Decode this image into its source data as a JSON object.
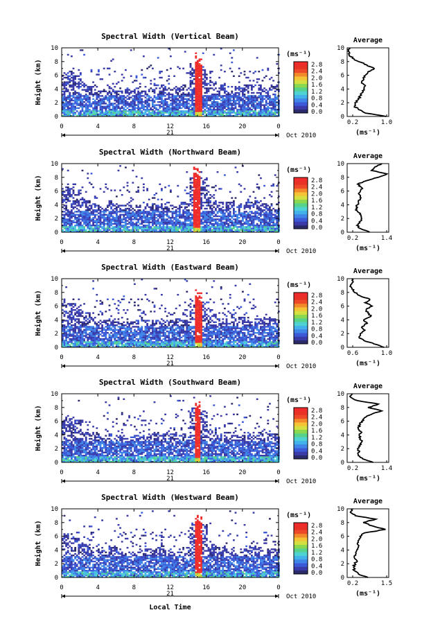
{
  "colors": {
    "scale": [
      "#2b2b6b",
      "#3a3aa8",
      "#3c5ad8",
      "#3f86e8",
      "#43b1ea",
      "#4fd2d2",
      "#57d28a",
      "#8ad850",
      "#d4df42",
      "#f5c436",
      "#f28a2c",
      "#ee4a2a",
      "#e83226",
      "#ef2b2b"
    ],
    "spike": "#ef2b2b"
  },
  "labels": {
    "date_label": "Oct 2010",
    "day_label": "21",
    "xlabel_bottom": "Local Time",
    "ylabel": "Height (km)",
    "colorbar_unit": "(ms⁻¹)",
    "avg_title": "Average",
    "avg_xlabel": "(ms⁻¹)"
  },
  "chart_data": [
    {
      "type": "heatmap",
      "title": "Spectral Width (Vertical Beam)",
      "xlabel": "",
      "ylabel": "Height (km)",
      "xlim": [
        0,
        24
      ],
      "ylim": [
        0,
        10
      ],
      "xticks": [
        "0",
        "4",
        "8",
        "12",
        "16",
        "20",
        "0"
      ],
      "yticks": [
        "0",
        "2",
        "4",
        "6",
        "8",
        "10"
      ],
      "colorbar": {
        "label": "(ms⁻¹)",
        "ticks": [
          "0.0",
          "0.4",
          "0.8",
          "1.2",
          "1.6",
          "2.0",
          "2.4",
          "2.8"
        ],
        "range": [
          0,
          2.8
        ]
      },
      "echo_top_km": [
        6.5,
        6.2,
        4.8,
        4.6,
        4.2,
        4.5,
        4.1,
        4.0,
        4.3,
        4.4,
        4.8,
        4.4,
        4.4,
        4.5,
        8.0,
        7.6,
        5.5,
        4.8,
        3.6,
        4.5,
        4.8,
        4.7,
        4.5,
        4.5
      ],
      "high_width_hours": [
        14.6,
        15.4
      ],
      "average_profile": {
        "title": "Average",
        "xlabel": "(ms⁻¹)",
        "xticks": [
          "0.2",
          "1.0"
        ],
        "xlim": [
          0.2,
          1.0
        ],
        "heights_km": [
          0,
          0.5,
          1,
          1.5,
          2,
          2.5,
          3,
          3.5,
          4,
          4.5,
          5,
          5.5,
          6,
          6.5,
          7,
          7.5,
          8,
          8.5,
          9,
          9.5,
          10
        ],
        "values": [
          0.95,
          0.55,
          0.42,
          0.34,
          0.35,
          0.42,
          0.45,
          0.5,
          0.52,
          0.55,
          0.48,
          0.52,
          0.55,
          0.6,
          0.72,
          0.58,
          0.42,
          0.3,
          0.24,
          0.22,
          0.25
        ]
      }
    },
    {
      "type": "heatmap",
      "title": "Spectral Width (Northward Beam)",
      "xlabel": "",
      "ylabel": "Height (km)",
      "xlim": [
        0,
        24
      ],
      "ylim": [
        0,
        10
      ],
      "xticks": [
        "0",
        "4",
        "8",
        "12",
        "16",
        "20",
        "0"
      ],
      "yticks": [
        "0",
        "2",
        "4",
        "6",
        "8",
        "10"
      ],
      "colorbar": {
        "label": "(ms⁻¹)",
        "ticks": [
          "0.0",
          "0.4",
          "0.8",
          "1.2",
          "1.6",
          "2.0",
          "2.4",
          "2.8"
        ],
        "range": [
          0,
          2.8
        ]
      },
      "echo_top_km": [
        6.8,
        6.3,
        5.0,
        4.4,
        4.2,
        4.7,
        4.1,
        4.0,
        4.2,
        4.5,
        4.4,
        4.5,
        4.2,
        4.5,
        8.5,
        8.0,
        5.2,
        4.5,
        4.6,
        4.4,
        4.6,
        4.7,
        4.4,
        4.5
      ],
      "high_width_hours": [
        14.5,
        15.3
      ],
      "average_profile": {
        "title": "Average",
        "xlabel": "(ms⁻¹)",
        "xticks": [
          "0.2",
          "1.4"
        ],
        "xlim": [
          0.2,
          1.4
        ],
        "heights_km": [
          0,
          0.5,
          1,
          1.5,
          2,
          2.5,
          3,
          3.5,
          4,
          4.5,
          5,
          5.5,
          6,
          6.5,
          7,
          7.5,
          8,
          8.5,
          9,
          9.5,
          10
        ],
        "values": [
          0.85,
          0.6,
          0.48,
          0.55,
          0.62,
          0.6,
          0.5,
          0.46,
          0.5,
          0.52,
          0.6,
          0.55,
          0.58,
          0.62,
          0.5,
          0.75,
          1.1,
          1.35,
          0.9,
          1.0,
          1.2
        ]
      }
    },
    {
      "type": "heatmap",
      "title": "Spectral Width (Eastward Beam)",
      "xlabel": "",
      "ylabel": "Height (km)",
      "xlim": [
        0,
        24
      ],
      "ylim": [
        0,
        10
      ],
      "xticks": [
        "0",
        "4",
        "8",
        "12",
        "16",
        "20",
        "0"
      ],
      "yticks": [
        "0",
        "2",
        "4",
        "6",
        "8",
        "10"
      ],
      "colorbar": {
        "label": "(ms⁻¹)",
        "ticks": [
          "0.0",
          "0.4",
          "0.8",
          "1.2",
          "1.6",
          "2.0",
          "2.4",
          "2.8"
        ],
        "range": [
          0,
          2.8
        ]
      },
      "echo_top_km": [
        7.0,
        6.5,
        5.2,
        4.5,
        4.0,
        4.2,
        3.8,
        3.8,
        4.0,
        4.0,
        4.3,
        4.0,
        4.4,
        4.2,
        7.2,
        6.8,
        5.0,
        4.5,
        4.8,
        4.5,
        4.6,
        4.4,
        4.5,
        4.3
      ],
      "high_width_hours": [
        14.7,
        15.5
      ],
      "average_profile": {
        "title": "Average",
        "xlabel": "(ms⁻¹)",
        "xticks": [
          "0.6",
          "1.0"
        ],
        "xlim": [
          0.4,
          1.1
        ],
        "heights_km": [
          0,
          0.5,
          1,
          1.5,
          2,
          2.5,
          3,
          3.5,
          4,
          4.5,
          5,
          5.5,
          6,
          6.5,
          7,
          7.5,
          8,
          8.5,
          9,
          9.5,
          10
        ],
        "values": [
          1.02,
          0.85,
          0.68,
          0.6,
          0.62,
          0.7,
          0.65,
          0.74,
          0.68,
          0.8,
          0.75,
          0.72,
          0.82,
          0.7,
          0.78,
          0.62,
          0.52,
          0.48,
          0.46,
          0.5,
          0.48
        ]
      }
    },
    {
      "type": "heatmap",
      "title": "Spectral Width (Southward Beam)",
      "xlabel": "",
      "ylabel": "Height (km)",
      "xlim": [
        0,
        24
      ],
      "ylim": [
        0,
        10
      ],
      "xticks": [
        "0",
        "4",
        "8",
        "12",
        "16",
        "20",
        "0"
      ],
      "yticks": [
        "0",
        "2",
        "4",
        "6",
        "8",
        "10"
      ],
      "colorbar": {
        "label": "(ms⁻¹)",
        "ticks": [
          "0.0",
          "0.4",
          "0.8",
          "1.2",
          "1.6",
          "2.0",
          "2.4",
          "2.8"
        ],
        "range": [
          0,
          2.8
        ]
      },
      "echo_top_km": [
        6.5,
        6.4,
        5.0,
        4.5,
        4.2,
        4.4,
        4.1,
        4.1,
        4.2,
        4.4,
        4.6,
        4.5,
        4.3,
        4.4,
        8.2,
        7.6,
        5.0,
        4.6,
        4.5,
        4.4,
        4.6,
        4.5,
        4.5,
        4.4
      ],
      "high_width_hours": [
        14.6,
        15.3
      ],
      "average_profile": {
        "title": "Average",
        "xlabel": "(ms⁻¹)",
        "xticks": [
          "0.2",
          "1.4"
        ],
        "xlim": [
          0.2,
          1.4
        ],
        "heights_km": [
          0,
          0.5,
          1,
          1.5,
          2,
          2.5,
          3,
          3.5,
          4,
          4.5,
          5,
          5.5,
          6,
          6.5,
          7,
          7.5,
          8,
          8.5,
          9,
          9.5,
          10
        ],
        "values": [
          0.95,
          0.65,
          0.52,
          0.55,
          0.5,
          0.55,
          0.62,
          0.58,
          0.55,
          0.6,
          0.52,
          0.58,
          0.62,
          0.7,
          0.9,
          1.2,
          0.8,
          1.1,
          0.5,
          0.3,
          0.35
        ]
      }
    },
    {
      "type": "heatmap",
      "title": "Spectral Width (Westward Beam)",
      "xlabel": "Local Time",
      "ylabel": "Height (km)",
      "xlim": [
        0,
        24
      ],
      "ylim": [
        0,
        10
      ],
      "xticks": [
        "0",
        "4",
        "8",
        "12",
        "16",
        "20",
        "0"
      ],
      "yticks": [
        "0",
        "2",
        "4",
        "6",
        "8",
        "10"
      ],
      "colorbar": {
        "label": "(ms⁻¹)",
        "ticks": [
          "0.0",
          "0.4",
          "0.8",
          "1.2",
          "1.6",
          "2.0",
          "2.4",
          "2.8"
        ],
        "range": [
          0,
          2.8
        ]
      },
      "echo_top_km": [
        6.6,
        6.2,
        5.0,
        4.4,
        4.1,
        4.5,
        4.0,
        4.0,
        4.2,
        4.3,
        4.5,
        4.4,
        4.3,
        4.5,
        8.3,
        7.8,
        5.1,
        4.6,
        4.5,
        4.4,
        4.5,
        4.6,
        4.4,
        4.4
      ],
      "high_width_hours": [
        14.6,
        15.4
      ],
      "average_profile": {
        "title": "Average",
        "xlabel": "(ms⁻¹)",
        "xticks": [
          "0.2",
          "1.5"
        ],
        "xlim": [
          0.2,
          1.5
        ],
        "heights_km": [
          0,
          0.5,
          1,
          1.5,
          2,
          2.5,
          3,
          3.5,
          4,
          4.5,
          5,
          5.5,
          6,
          6.5,
          7,
          7.5,
          8,
          8.5,
          9,
          9.5,
          10
        ],
        "values": [
          0.85,
          0.55,
          0.42,
          0.4,
          0.45,
          0.5,
          0.42,
          0.48,
          0.5,
          0.55,
          0.52,
          0.58,
          0.6,
          0.75,
          1.4,
          1.0,
          0.7,
          1.1,
          0.45,
          0.3,
          0.38
        ]
      }
    }
  ]
}
